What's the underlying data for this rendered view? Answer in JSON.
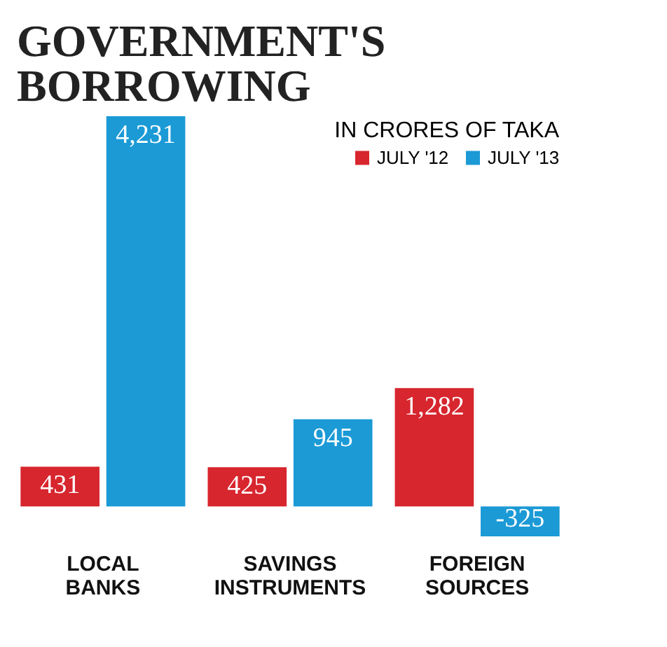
{
  "chart_data": {
    "type": "bar",
    "title": "GOVERNMENT'S BORROWING",
    "subtitle": "IN CRORES OF TAKA",
    "categories": [
      "LOCAL BANKS",
      "SAVINGS INSTRUMENTS",
      "FOREIGN SOURCES"
    ],
    "series": [
      {
        "name": "JULY '12",
        "color": "#d7262e",
        "values": [
          431,
          425,
          1282
        ],
        "value_labels": [
          "431",
          "425",
          "1,282"
        ]
      },
      {
        "name": "JULY '13",
        "color": "#1b9ad6",
        "values": [
          4231,
          945,
          -325
        ],
        "value_labels": [
          "4,231",
          "945",
          "-325"
        ]
      }
    ],
    "legend": "top right"
  }
}
